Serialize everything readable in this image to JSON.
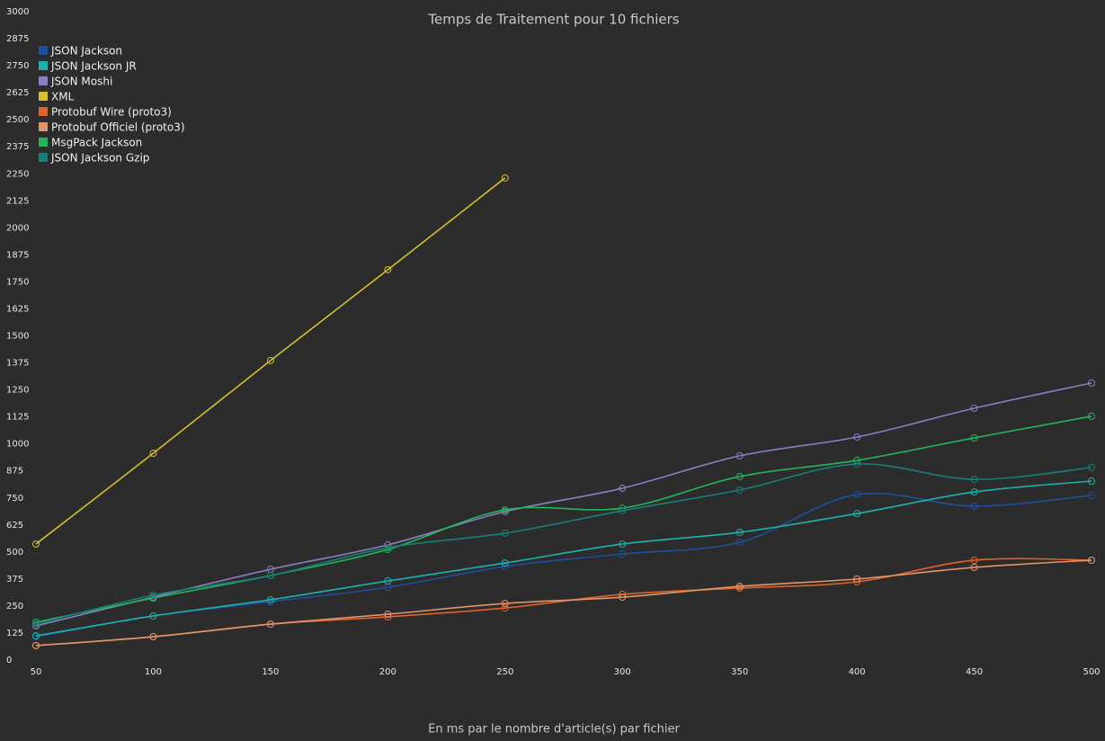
{
  "chart_data": {
    "type": "line",
    "title": "Temps de Traitement pour 10 fichiers",
    "x_label": "En ms par le nombre d'article(s) par fichier",
    "x": [
      50,
      100,
      150,
      200,
      250,
      300,
      350,
      400,
      450,
      500
    ],
    "xlim": [
      50,
      500
    ],
    "xticks": [
      50,
      100,
      150,
      200,
      250,
      300,
      350,
      400,
      450,
      500
    ],
    "ylim": [
      0,
      3000
    ],
    "yticks": [
      0,
      125,
      250,
      375,
      500,
      625,
      750,
      875,
      1000,
      1125,
      1250,
      1375,
      1500,
      1625,
      1750,
      1875,
      2000,
      2125,
      2250,
      2375,
      2500,
      2625,
      2750,
      2875,
      3000
    ],
    "legend": "top-left",
    "series": [
      {
        "name": "JSON Jackson",
        "color": "#1f4f9e",
        "values": [
          108,
          204,
          270,
          337,
          433,
          491,
          545,
          766,
          712,
          762
        ]
      },
      {
        "name": "JSON Jackson JR",
        "color": "#1cb2b0",
        "values": [
          112,
          204,
          279,
          366,
          449,
          537,
          591,
          678,
          778,
          828
        ]
      },
      {
        "name": "JSON Moshi",
        "color": "#8a7fc2",
        "values": [
          158,
          291,
          420,
          533,
          687,
          795,
          945,
          1032,
          1165,
          1282
        ]
      },
      {
        "name": "XML",
        "color": "#d2bf2a",
        "values": [
          537,
          957,
          1386,
          1806,
          2231,
          null,
          null,
          null,
          null,
          null
        ]
      },
      {
        "name": "Protobuf Wire (proto3)",
        "color": "#e0622a",
        "values": [
          67,
          108,
          166,
          200,
          241,
          304,
          333,
          362,
          462,
          462
        ]
      },
      {
        "name": "Protobuf Officiel (proto3)",
        "color": "#df946c",
        "values": [
          67,
          108,
          166,
          212,
          262,
          291,
          341,
          375,
          429,
          462
        ]
      },
      {
        "name": "MsgPack Jackson",
        "color": "#22b55a",
        "values": [
          175,
          287,
          391,
          512,
          695,
          703,
          849,
          924,
          1028,
          1128
        ]
      },
      {
        "name": "JSON Jackson Gzip",
        "color": "#168077",
        "values": [
          166,
          300,
          391,
          520,
          587,
          691,
          787,
          907,
          836,
          891
        ]
      }
    ]
  }
}
